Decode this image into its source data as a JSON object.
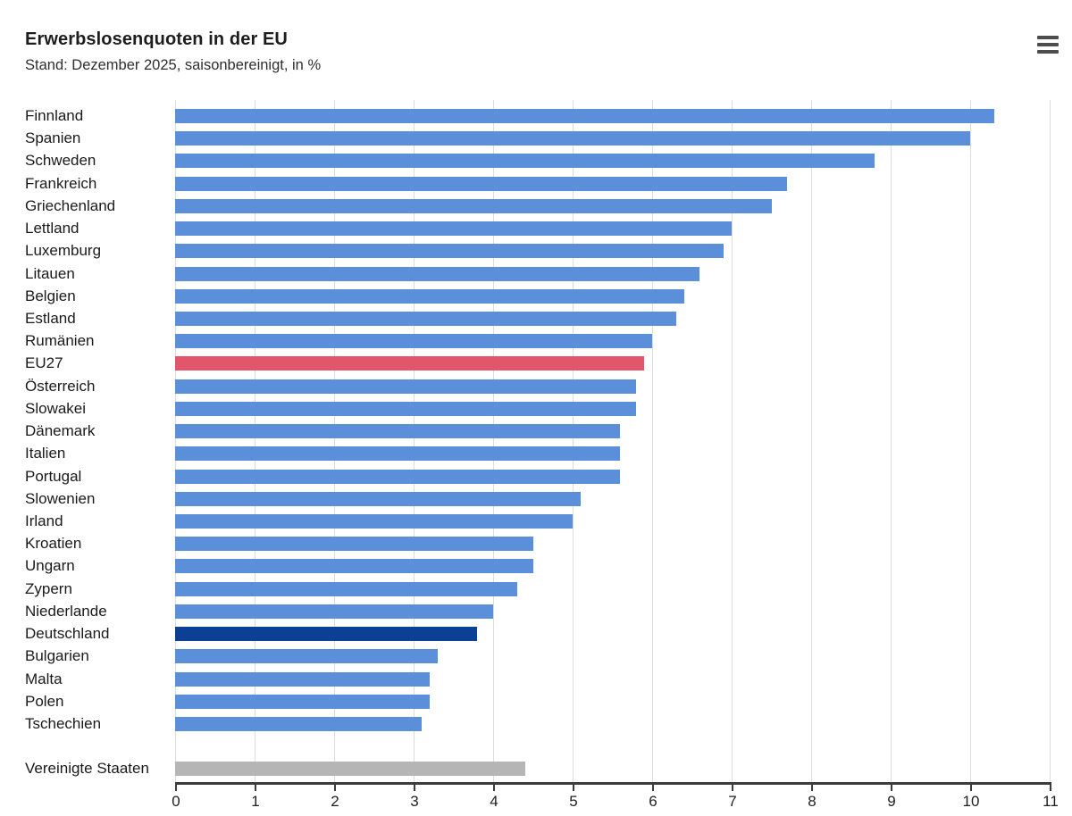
{
  "header": {
    "title": "Erwerbslosenquoten in der EU",
    "subtitle": "Stand: Dezember 2025, saisonbereinigt, in %",
    "menu_icon": "hamburger-menu-icon"
  },
  "colors": {
    "bar_default": "#5B8FD9",
    "bar_highlight_eu": "#E2566C",
    "bar_highlight_germany": "#0C4094",
    "bar_non_eu": "#B5B5B5",
    "gridline": "#DCDCDC",
    "axis": "#3C3C3C",
    "text": "#1A1A1A"
  },
  "chart_data": {
    "type": "bar",
    "orientation": "horizontal",
    "title": "Erwerbslosenquoten in der EU",
    "subtitle": "Stand: Dezember 2025, saisonbereinigt, in %",
    "unit": "%",
    "xlim": [
      0,
      11
    ],
    "x_ticks": [
      0,
      1,
      2,
      3,
      4,
      5,
      6,
      7,
      8,
      9,
      10,
      11
    ],
    "grid": true,
    "legend": "none",
    "items": [
      {
        "label": "Finnland",
        "value": 10.3,
        "color": "bar_default"
      },
      {
        "label": "Spanien",
        "value": 10.0,
        "color": "bar_default"
      },
      {
        "label": "Schweden",
        "value": 8.8,
        "color": "bar_default"
      },
      {
        "label": "Frankreich",
        "value": 7.7,
        "color": "bar_default"
      },
      {
        "label": "Griechenland",
        "value": 7.5,
        "color": "bar_default"
      },
      {
        "label": "Lettland",
        "value": 7.0,
        "color": "bar_default"
      },
      {
        "label": "Luxemburg",
        "value": 6.9,
        "color": "bar_default"
      },
      {
        "label": "Litauen",
        "value": 6.6,
        "color": "bar_default"
      },
      {
        "label": "Belgien",
        "value": 6.4,
        "color": "bar_default"
      },
      {
        "label": "Estland",
        "value": 6.3,
        "color": "bar_default"
      },
      {
        "label": "Rumänien",
        "value": 6.0,
        "color": "bar_default"
      },
      {
        "label": "EU27",
        "value": 5.9,
        "color": "bar_highlight_eu"
      },
      {
        "label": "Österreich",
        "value": 5.8,
        "color": "bar_default"
      },
      {
        "label": "Slowakei",
        "value": 5.8,
        "color": "bar_default"
      },
      {
        "label": "Dänemark",
        "value": 5.6,
        "color": "bar_default"
      },
      {
        "label": "Italien",
        "value": 5.6,
        "color": "bar_default"
      },
      {
        "label": "Portugal",
        "value": 5.6,
        "color": "bar_default"
      },
      {
        "label": "Slowenien",
        "value": 5.1,
        "color": "bar_default"
      },
      {
        "label": "Irland",
        "value": 5.0,
        "color": "bar_default"
      },
      {
        "label": "Kroatien",
        "value": 4.5,
        "color": "bar_default"
      },
      {
        "label": "Ungarn",
        "value": 4.5,
        "color": "bar_default"
      },
      {
        "label": "Zypern",
        "value": 4.3,
        "color": "bar_default"
      },
      {
        "label": "Niederlande",
        "value": 4.0,
        "color": "bar_default"
      },
      {
        "label": "Deutschland",
        "value": 3.8,
        "color": "bar_highlight_germany"
      },
      {
        "label": "Bulgarien",
        "value": 3.3,
        "color": "bar_default"
      },
      {
        "label": "Malta",
        "value": 3.2,
        "color": "bar_default"
      },
      {
        "label": "Polen",
        "value": 3.2,
        "color": "bar_default"
      },
      {
        "label": "Tschechien",
        "value": 3.1,
        "color": "bar_default"
      },
      {
        "label": "Vereinigte Staaten",
        "value": 4.4,
        "color": "bar_non_eu",
        "gap_before": true
      }
    ]
  }
}
